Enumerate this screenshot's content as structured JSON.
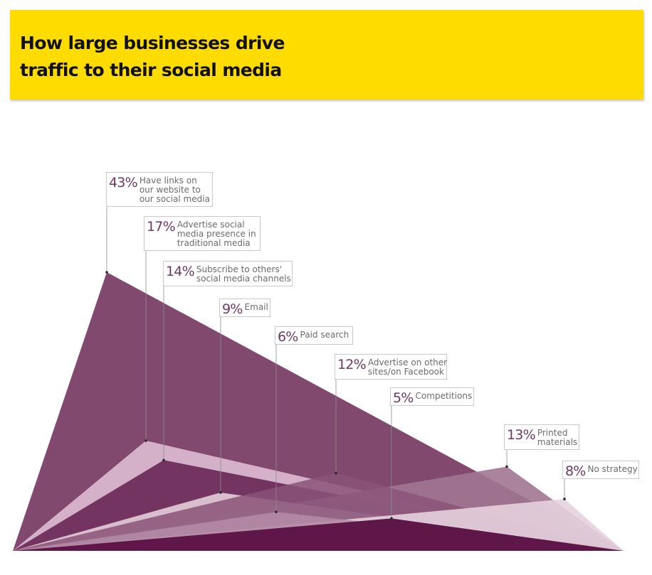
{
  "title": {
    "line1": "How large businesses drive",
    "line2": "traffic to their social media"
  },
  "colors": {
    "banner": "#fedc00",
    "title": "#111111",
    "percent_text": "#6e3a63",
    "label_text": "#6b6b6b"
  },
  "chart_data": {
    "type": "area",
    "title": "How large businesses drive traffic to their social media",
    "unit": "%",
    "items": [
      {
        "value": 43,
        "pct_label": "43%",
        "lines": [
          "Have links on",
          "our website to",
          "our social media"
        ],
        "color": "#82496f",
        "opacity": 1.0
      },
      {
        "value": 17,
        "pct_label": "17%",
        "lines": [
          "Advertise social",
          "media presence in",
          "traditional media"
        ],
        "color": "#d8b6cd",
        "opacity": 0.95
      },
      {
        "value": 14,
        "pct_label": "14%",
        "lines": [
          "Subscribe to others'",
          "social media channels"
        ],
        "color": "#6f2f5d",
        "opacity": 0.97
      },
      {
        "value": 9,
        "pct_label": "9%",
        "lines": [
          "Email"
        ],
        "color": "#e2cad8",
        "opacity": 0.92
      },
      {
        "value": 6,
        "pct_label": "6%",
        "lines": [
          "Paid search"
        ],
        "color": "#b48aa5",
        "opacity": 0.9
      },
      {
        "value": 12,
        "pct_label": "12%",
        "lines": [
          "Advertise on other",
          "sites/on Facebook"
        ],
        "color": "#8a5378",
        "opacity": 0.85
      },
      {
        "value": 5,
        "pct_label": "5%",
        "lines": [
          "Competitions"
        ],
        "color": "#5e1748",
        "opacity": 1.0
      },
      {
        "value": 13,
        "pct_label": "13%",
        "lines": [
          "Printed",
          "materials"
        ],
        "color": "#a17792",
        "opacity": 0.9
      },
      {
        "value": 8,
        "pct_label": "8%",
        "lines": [
          "No strategy"
        ],
        "color": "#e6d2de",
        "opacity": 0.9
      }
    ]
  }
}
